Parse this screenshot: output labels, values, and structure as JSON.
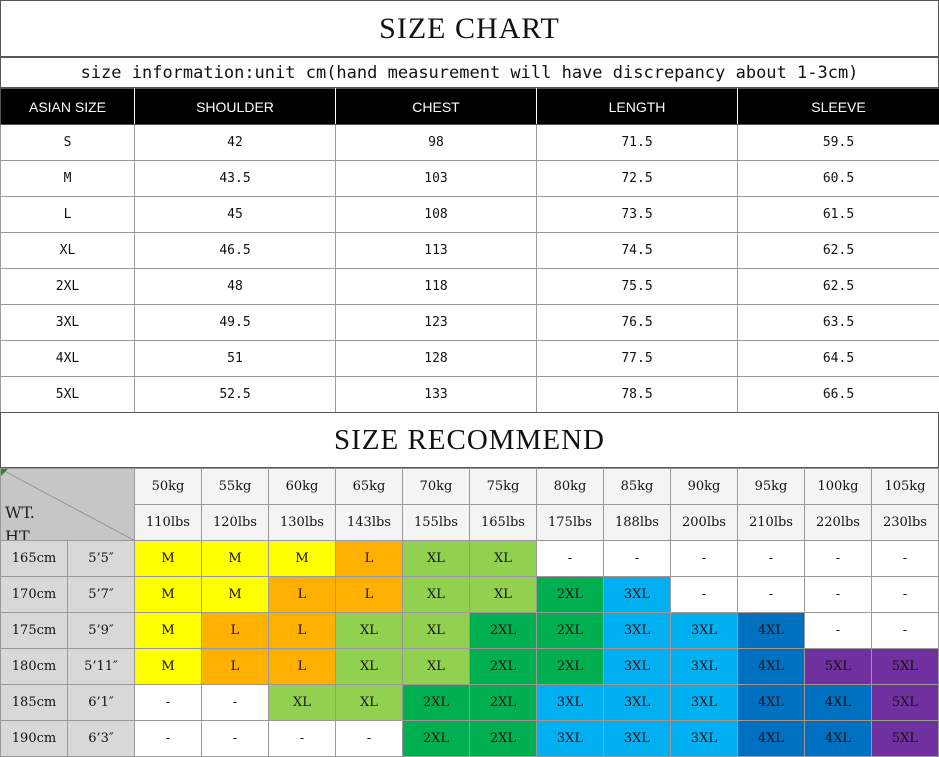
{
  "size_chart": {
    "title": "SIZE CHART",
    "subtitle": "size information:unit cm(hand measurement will have discrepancy about 1-3cm)",
    "columns": [
      "ASIAN SIZE",
      "SHOULDER",
      "CHEST",
      "LENGTH",
      "SLEEVE"
    ],
    "rows": [
      [
        "S",
        "42",
        "98",
        "71.5",
        "59.5"
      ],
      [
        "M",
        "43.5",
        "103",
        "72.5",
        "60.5"
      ],
      [
        "L",
        "45",
        "108",
        "73.5",
        "61.5"
      ],
      [
        "XL",
        "46.5",
        "113",
        "74.5",
        "62.5"
      ],
      [
        "2XL",
        "48",
        "118",
        "75.5",
        "62.5"
      ],
      [
        "3XL",
        "49.5",
        "123",
        "76.5",
        "63.5"
      ],
      [
        "4XL",
        "51",
        "128",
        "77.5",
        "64.5"
      ],
      [
        "5XL",
        "52.5",
        "133",
        "78.5",
        "66.5"
      ]
    ]
  },
  "size_recommend": {
    "title": "SIZE RECOMMEND",
    "corner_wt": "WT.",
    "corner_ht": "HT.",
    "weights_kg": [
      "50kg",
      "55kg",
      "60kg",
      "65kg",
      "70kg",
      "75kg",
      "80kg",
      "85kg",
      "90kg",
      "95kg",
      "100kg",
      "105kg"
    ],
    "weights_lbs": [
      "110lbs",
      "120lbs",
      "130lbs",
      "143lbs",
      "155lbs",
      "165lbs",
      "175lbs",
      "188lbs",
      "200lbs",
      "210lbs",
      "220lbs",
      "230lbs"
    ],
    "colors": {
      "M": "#ffff00",
      "L": "#ffb000",
      "XL": "#92d050",
      "2XL": "#00b050",
      "3XL": "#00b0f0",
      "4XL": "#0070c0",
      "5XL": "#7030a0",
      "-": "#ffffff"
    },
    "rows": [
      {
        "cm": "165cm",
        "ft": "5’5″",
        "sizes": [
          "M",
          "M",
          "M",
          "L",
          "XL",
          "XL",
          "-",
          "-",
          "-",
          "-",
          "-",
          "-"
        ]
      },
      {
        "cm": "170cm",
        "ft": "5’7″",
        "sizes": [
          "M",
          "M",
          "L",
          "L",
          "XL",
          "XL",
          "2XL",
          "3XL",
          "-",
          "-",
          "-",
          "-"
        ]
      },
      {
        "cm": "175cm",
        "ft": "5’9″",
        "sizes": [
          "M",
          "L",
          "L",
          "XL",
          "XL",
          "2XL",
          "2XL",
          "3XL",
          "3XL",
          "4XL",
          "-",
          "-"
        ]
      },
      {
        "cm": "180cm",
        "ft": "5’11″",
        "sizes": [
          "M",
          "L",
          "L",
          "XL",
          "XL",
          "2XL",
          "2XL",
          "3XL",
          "3XL",
          "4XL",
          "5XL",
          "5XL"
        ]
      },
      {
        "cm": "185cm",
        "ft": "6’1″",
        "sizes": [
          "-",
          "-",
          "XL",
          "XL",
          "2XL",
          "2XL",
          "3XL",
          "3XL",
          "3XL",
          "4XL",
          "4XL",
          "5XL"
        ]
      },
      {
        "cm": "190cm",
        "ft": "6’3″",
        "sizes": [
          "-",
          "-",
          "-",
          "-",
          "2XL",
          "2XL",
          "3XL",
          "3XL",
          "3XL",
          "4XL",
          "4XL",
          "5XL"
        ]
      }
    ]
  }
}
